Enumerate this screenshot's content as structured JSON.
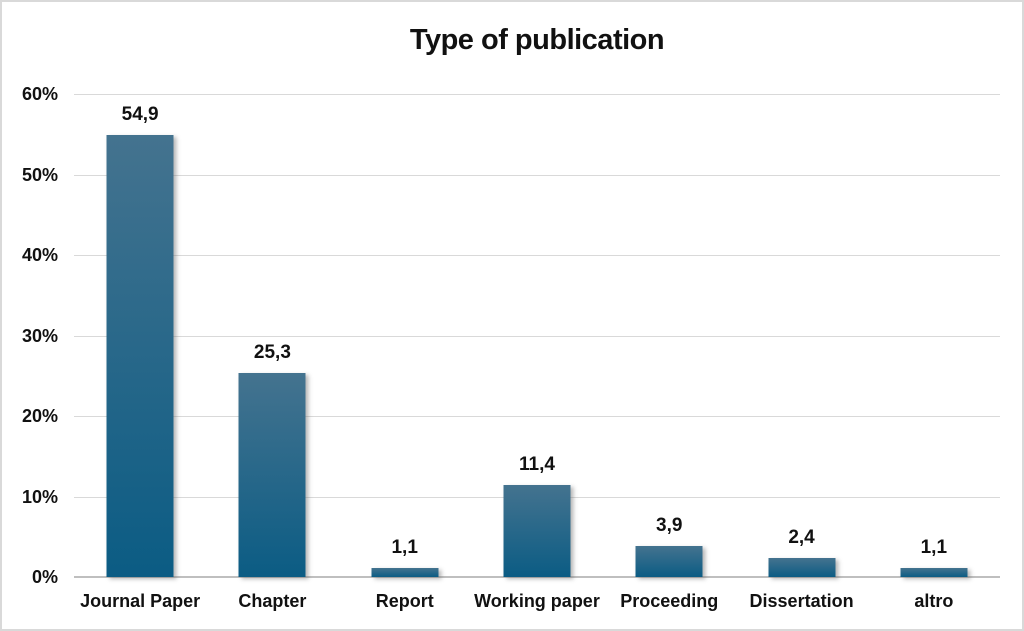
{
  "chart_data": {
    "type": "bar",
    "title": "Type of publication",
    "categories": [
      "Journal Paper",
      "Chapter",
      "Report",
      "Working paper",
      "Proceeding",
      "Dissertation",
      "altro"
    ],
    "values": [
      54.9,
      25.3,
      1.1,
      11.4,
      3.9,
      2.4,
      1.1
    ],
    "value_labels": [
      "54,9",
      "25,3",
      "1,1",
      "11,4",
      "3,9",
      "2,4",
      "1,1"
    ],
    "xlabel": "",
    "ylabel": "",
    "ylim": [
      0,
      60
    ],
    "y_tick_step": 10,
    "y_tick_labels": [
      "0%",
      "10%",
      "20%",
      "30%",
      "40%",
      "50%",
      "60%"
    ],
    "grid": true,
    "legend": "none",
    "colors": {
      "bar_gradient_top": "#44738f",
      "bar_gradient_bottom": "#0b5c84",
      "gridline": "#d9d9d9",
      "axis_line": "#bfbfbf",
      "text": "#111111",
      "background": "#ffffff"
    }
  }
}
